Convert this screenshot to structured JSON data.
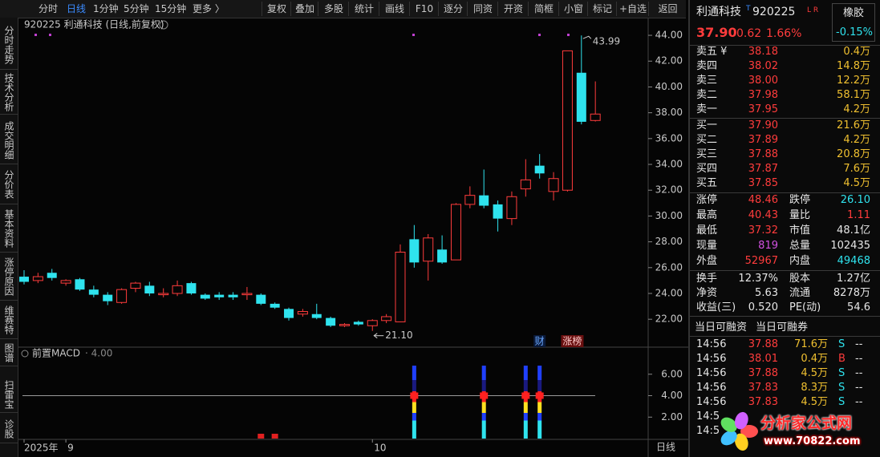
{
  "toolbar": {
    "periods": [
      "分时",
      "日线",
      "1分钟",
      "5分钟",
      "15分钟",
      "更多 〉"
    ],
    "tools": [
      "复权",
      "叠加",
      "多股",
      "统计",
      "画线",
      "F10",
      "逐分",
      "同资",
      "开资",
      "简框",
      "小窗",
      "标记",
      "+自选",
      "返回"
    ]
  },
  "side_tabs": [
    "分时走势",
    "技术分析",
    "成交明细",
    "分价表",
    "基本资料",
    "涨停原因",
    "维赛特",
    "图谱",
    "扫雷宝",
    "诊股"
  ],
  "chart_data": [
    {
      "type": "candlestick",
      "title": "920225  利通科技 (日线,前复权)",
      "open": [
        25.3,
        25.0,
        25.6,
        24.8,
        25.1,
        24.3,
        23.9,
        23.3,
        24.4,
        24.6,
        23.9,
        24.0,
        24.8,
        23.9,
        23.9,
        23.9,
        23.9,
        23.9,
        23.2,
        22.8,
        22.4,
        22.4,
        22.1,
        21.5,
        21.8,
        21.5,
        21.9,
        21.8,
        28.2,
        26.5,
        27.4,
        26.6,
        30.9,
        31.6,
        30.9,
        29.8,
        32.1,
        33.9,
        31.9,
        32.0,
        41.1,
        37.4
      ],
      "high": [
        25.8,
        25.6,
        25.9,
        25.1,
        25.2,
        24.6,
        24.1,
        24.4,
        24.9,
        24.9,
        24.4,
        25.0,
        24.9,
        24.0,
        24.1,
        24.1,
        24.5,
        24.0,
        23.3,
        22.9,
        22.8,
        23.2,
        22.2,
        21.7,
        21.9,
        22.0,
        22.4,
        27.8,
        29.3,
        28.6,
        28.5,
        31.0,
        32.3,
        33.6,
        31.2,
        31.9,
        34.4,
        34.8,
        33.4,
        42.8,
        43.99,
        40.43
      ],
      "low": [
        24.7,
        24.8,
        25.0,
        24.6,
        24.2,
        23.7,
        23.1,
        23.2,
        24.1,
        23.8,
        23.7,
        23.8,
        23.9,
        23.5,
        23.5,
        23.5,
        23.5,
        23.1,
        22.8,
        21.9,
        22.2,
        22.0,
        21.4,
        21.4,
        21.5,
        21.1,
        21.7,
        21.8,
        26.0,
        25.0,
        26.3,
        26.6,
        30.6,
        30.6,
        28.8,
        29.3,
        31.5,
        32.9,
        31.2,
        31.9,
        37.1,
        37.32
      ],
      "close": [
        24.9,
        25.3,
        25.2,
        25.0,
        24.3,
        23.9,
        23.4,
        24.3,
        24.8,
        24.0,
        24.0,
        24.6,
        24.0,
        23.6,
        23.7,
        23.7,
        24.0,
        23.2,
        22.9,
        22.1,
        22.6,
        22.1,
        21.5,
        21.6,
        21.6,
        21.9,
        22.2,
        27.2,
        26.4,
        28.3,
        26.4,
        30.9,
        31.6,
        30.8,
        29.8,
        31.5,
        32.8,
        33.3,
        32.9,
        42.8,
        37.3,
        37.9
      ],
      "up_color": "#ff3c3c",
      "down_color": "#2fe3ee",
      "ylim": [
        19.9,
        45.37
      ],
      "yticks": [
        {
          "value": 22,
          "label": "22.00"
        },
        {
          "value": 24,
          "label": "24.00"
        },
        {
          "value": 26,
          "label": "26.00"
        },
        {
          "value": 28,
          "label": "28.00"
        },
        {
          "value": 30,
          "label": "30.00"
        },
        {
          "value": 32,
          "label": "32.00"
        },
        {
          "value": 34,
          "label": "34.00"
        },
        {
          "value": 36,
          "label": "36.00"
        },
        {
          "value": 38,
          "label": "38.00"
        },
        {
          "value": 40,
          "label": "40.00"
        },
        {
          "value": 42,
          "label": "42.00"
        },
        {
          "value": 44,
          "label": "44.00"
        }
      ],
      "xticks": [
        {
          "value": 0,
          "label": "2025年"
        },
        {
          "value": 3,
          "label": "9"
        },
        {
          "value": 25,
          "label": "10"
        }
      ],
      "high_label": {
        "index": 40,
        "value": 43.99,
        "label": "43.99"
      },
      "low_label": {
        "index": 25,
        "value": 21.1,
        "label": "21.10"
      },
      "badges": [
        {
          "index": 37,
          "label": "财"
        },
        {
          "index": 39,
          "label": "涨榜"
        }
      ],
      "period_label": "日线"
    },
    {
      "type": "bar",
      "title": "前置MACD",
      "subtitle": "· 4.00",
      "ylim": [
        0,
        8.3
      ],
      "yticks": [
        {
          "value": 2,
          "label": "2.00"
        },
        {
          "value": 4,
          "label": "4.00"
        },
        {
          "value": 6,
          "label": "6.00"
        }
      ],
      "reference_line": 4,
      "bars": [
        {
          "x": [
            17,
            18
          ],
          "values": [
            0.45,
            0.45
          ],
          "color": "#e02020"
        },
        {
          "x": [
            28,
            33,
            36,
            37
          ],
          "values": [
            6.8,
            6.8,
            6.8,
            6.8
          ]
        }
      ]
    }
  ],
  "quote": {
    "name": "利通科技",
    "t_flag": "T",
    "code": "920225",
    "flags": "L R",
    "sector": "橡胶",
    "sector_change": "-0.15%",
    "price": "37.90",
    "change": "0.62",
    "change_pct": "1.66%"
  },
  "order_book": {
    "asks": [
      [
        "卖五 ¥",
        "38.18",
        "0.4万"
      ],
      [
        "卖四",
        "38.02",
        "14.8万"
      ],
      [
        "卖三",
        "38.00",
        "12.2万"
      ],
      [
        "卖二",
        "37.98",
        "58.1万"
      ],
      [
        "卖一",
        "37.95",
        "4.2万"
      ]
    ],
    "bids": [
      [
        "买一",
        "37.90",
        "21.6万"
      ],
      [
        "买二",
        "37.89",
        "4.2万"
      ],
      [
        "买三",
        "37.88",
        "20.8万"
      ],
      [
        "买四",
        "37.87",
        "7.6万"
      ],
      [
        "买五",
        "37.85",
        "4.5万"
      ]
    ]
  },
  "stats": [
    [
      "涨停",
      "48.46",
      "跌停",
      "26.10"
    ],
    [
      "最高",
      "40.43",
      "量比",
      "1.11"
    ],
    [
      "最低",
      "37.32",
      "市值",
      "48.1亿"
    ],
    [
      "现量",
      "819",
      "总量",
      "102435"
    ],
    [
      "外盘",
      "52967",
      "内盘",
      "49468"
    ]
  ],
  "stats2": [
    [
      "换手",
      "12.37%",
      "股本",
      "1.27亿"
    ],
    [
      "净资",
      "5.63",
      "流通",
      "8278万"
    ],
    [
      "收益(三)",
      "0.520",
      "PE(动)",
      "54.6"
    ]
  ],
  "margin_header": [
    "当日可融资",
    "当日可融券"
  ],
  "trades": [
    [
      "14:56",
      "37.88",
      "71.6万",
      "S",
      "--"
    ],
    [
      "14:56",
      "38.01",
      "0.4万",
      "B",
      "--"
    ],
    [
      "14:56",
      "37.88",
      "4.5万",
      "S",
      "--"
    ],
    [
      "14:56",
      "37.83",
      "8.3万",
      "S",
      "--"
    ],
    [
      "14:56",
      "37.83",
      "4.5万",
      "S",
      "--"
    ],
    [
      "14:5"
    ],
    [
      "14:5"
    ]
  ],
  "logo": {
    "name": "分析家公式网",
    "url": "www.70822.com"
  }
}
